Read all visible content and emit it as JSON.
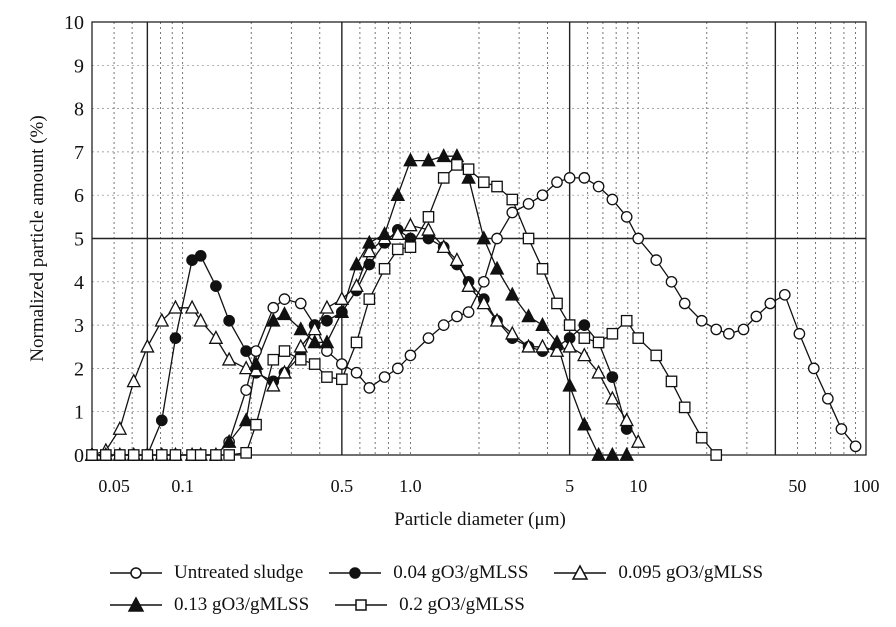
{
  "chart_data": {
    "type": "line",
    "x_scale": "log",
    "xlabel": "Particle diameter (μm)",
    "ylabel": "Normalized particle amount (%)",
    "xlim": [
      0.04,
      100
    ],
    "ylim": [
      0,
      10
    ],
    "x_ticks": [
      "0.05",
      "0.1",
      "0.5",
      "1.0",
      "5",
      "10",
      "50",
      "100"
    ],
    "y_ticks": [
      "0",
      "1",
      "2",
      "3",
      "4",
      "5",
      "6",
      "7",
      "8",
      "9",
      "10"
    ],
    "grid": "log-decade major and minor lines",
    "legend_position": "bottom",
    "series": [
      {
        "name": "Untreated sludge",
        "marker": "open-circle",
        "points": [
          [
            0.04,
            0
          ],
          [
            0.046,
            0
          ],
          [
            0.053,
            0
          ],
          [
            0.061,
            0
          ],
          [
            0.07,
            0
          ],
          [
            0.081,
            0
          ],
          [
            0.093,
            0
          ],
          [
            0.11,
            0
          ],
          [
            0.12,
            0
          ],
          [
            0.14,
            0
          ],
          [
            0.16,
            0.3
          ],
          [
            0.19,
            1.5
          ],
          [
            0.21,
            2.4
          ],
          [
            0.25,
            3.4
          ],
          [
            0.28,
            3.6
          ],
          [
            0.33,
            3.5
          ],
          [
            0.38,
            3.0
          ],
          [
            0.43,
            2.4
          ],
          [
            0.5,
            2.1
          ],
          [
            0.58,
            1.9
          ],
          [
            0.66,
            1.55
          ],
          [
            0.77,
            1.8
          ],
          [
            0.88,
            2.0
          ],
          [
            1.0,
            2.3
          ],
          [
            1.2,
            2.7
          ],
          [
            1.4,
            3.0
          ],
          [
            1.6,
            3.2
          ],
          [
            1.8,
            3.3
          ],
          [
            2.1,
            4.0
          ],
          [
            2.4,
            5.0
          ],
          [
            2.8,
            5.6
          ],
          [
            3.3,
            5.8
          ],
          [
            3.8,
            6.0
          ],
          [
            4.4,
            6.3
          ],
          [
            5.0,
            6.4
          ],
          [
            5.8,
            6.4
          ],
          [
            6.7,
            6.2
          ],
          [
            7.7,
            5.9
          ],
          [
            8.9,
            5.5
          ],
          [
            10,
            5.0
          ],
          [
            12,
            4.5
          ],
          [
            14,
            4.0
          ],
          [
            16,
            3.5
          ],
          [
            19,
            3.1
          ],
          [
            22,
            2.9
          ],
          [
            25,
            2.8
          ],
          [
            29,
            2.9
          ],
          [
            33,
            3.2
          ],
          [
            38,
            3.5
          ],
          [
            44,
            3.7
          ],
          [
            51,
            2.8
          ],
          [
            59,
            2.0
          ],
          [
            68,
            1.3
          ],
          [
            78,
            0.6
          ],
          [
            90,
            0.2
          ]
        ]
      },
      {
        "name": "0.04 gO3/gMLSS",
        "marker": "filled-circle",
        "points": [
          [
            0.04,
            0
          ],
          [
            0.046,
            0
          ],
          [
            0.053,
            0
          ],
          [
            0.061,
            0
          ],
          [
            0.07,
            0
          ],
          [
            0.081,
            0.8
          ],
          [
            0.093,
            2.7
          ],
          [
            0.11,
            4.5
          ],
          [
            0.12,
            4.6
          ],
          [
            0.14,
            3.9
          ],
          [
            0.16,
            3.1
          ],
          [
            0.19,
            2.4
          ],
          [
            0.21,
            1.9
          ],
          [
            0.25,
            1.7
          ],
          [
            0.28,
            1.9
          ],
          [
            0.33,
            2.3
          ],
          [
            0.38,
            3.0
          ],
          [
            0.43,
            3.1
          ],
          [
            0.5,
            3.3
          ],
          [
            0.58,
            3.8
          ],
          [
            0.66,
            4.4
          ],
          [
            0.77,
            4.9
          ],
          [
            0.88,
            5.2
          ],
          [
            1.0,
            5.0
          ],
          [
            1.2,
            5.0
          ],
          [
            1.4,
            4.8
          ],
          [
            1.6,
            4.4
          ],
          [
            1.8,
            4.0
          ],
          [
            2.1,
            3.6
          ],
          [
            2.4,
            3.1
          ],
          [
            2.8,
            2.7
          ],
          [
            3.3,
            2.5
          ],
          [
            3.8,
            2.4
          ],
          [
            4.4,
            2.5
          ],
          [
            5.0,
            2.7
          ],
          [
            5.8,
            3.0
          ],
          [
            6.7,
            2.6
          ],
          [
            7.7,
            1.8
          ],
          [
            8.9,
            0.6
          ]
        ]
      },
      {
        "name": "0.095 gO3/gMLSS",
        "marker": "open-triangle",
        "points": [
          [
            0.04,
            0
          ],
          [
            0.046,
            0.1
          ],
          [
            0.053,
            0.6
          ],
          [
            0.061,
            1.7
          ],
          [
            0.07,
            2.5
          ],
          [
            0.081,
            3.1
          ],
          [
            0.093,
            3.4
          ],
          [
            0.11,
            3.4
          ],
          [
            0.12,
            3.1
          ],
          [
            0.14,
            2.7
          ],
          [
            0.16,
            2.2
          ],
          [
            0.19,
            2.0
          ],
          [
            0.21,
            1.95
          ],
          [
            0.25,
            1.6
          ],
          [
            0.28,
            1.9
          ],
          [
            0.33,
            2.5
          ],
          [
            0.38,
            2.9
          ],
          [
            0.43,
            3.4
          ],
          [
            0.5,
            3.6
          ],
          [
            0.58,
            3.9
          ],
          [
            0.66,
            4.7
          ],
          [
            0.77,
            5.0
          ],
          [
            0.88,
            5.1
          ],
          [
            1.0,
            5.3
          ],
          [
            1.2,
            5.2
          ],
          [
            1.4,
            4.8
          ],
          [
            1.6,
            4.5
          ],
          [
            1.8,
            3.9
          ],
          [
            2.1,
            3.5
          ],
          [
            2.4,
            3.1
          ],
          [
            2.8,
            2.8
          ],
          [
            3.3,
            2.5
          ],
          [
            3.8,
            2.5
          ],
          [
            4.4,
            2.4
          ],
          [
            5.0,
            2.5
          ],
          [
            5.8,
            2.3
          ],
          [
            6.7,
            1.9
          ],
          [
            7.7,
            1.3
          ],
          [
            8.9,
            0.8
          ],
          [
            10,
            0.3
          ]
        ]
      },
      {
        "name": "0.13 gO3/gMLSS",
        "marker": "filled-triangle",
        "points": [
          [
            0.04,
            0
          ],
          [
            0.046,
            0
          ],
          [
            0.053,
            0
          ],
          [
            0.061,
            0
          ],
          [
            0.07,
            0
          ],
          [
            0.081,
            0
          ],
          [
            0.093,
            0
          ],
          [
            0.11,
            0
          ],
          [
            0.12,
            0
          ],
          [
            0.14,
            0
          ],
          [
            0.16,
            0.3
          ],
          [
            0.19,
            0.8
          ],
          [
            0.21,
            2.1
          ],
          [
            0.25,
            3.1
          ],
          [
            0.28,
            3.25
          ],
          [
            0.33,
            2.9
          ],
          [
            0.38,
            2.6
          ],
          [
            0.43,
            2.6
          ],
          [
            0.5,
            3.3
          ],
          [
            0.58,
            4.4
          ],
          [
            0.66,
            4.9
          ],
          [
            0.77,
            5.1
          ],
          [
            0.88,
            6.0
          ],
          [
            1.0,
            6.8
          ],
          [
            1.2,
            6.8
          ],
          [
            1.4,
            6.9
          ],
          [
            1.6,
            6.9
          ],
          [
            1.8,
            6.4
          ],
          [
            2.1,
            5.0
          ],
          [
            2.4,
            4.3
          ],
          [
            2.8,
            3.7
          ],
          [
            3.3,
            3.2
          ],
          [
            3.8,
            3.0
          ],
          [
            4.4,
            2.6
          ],
          [
            5.0,
            1.6
          ],
          [
            5.8,
            0.7
          ],
          [
            6.7,
            0
          ],
          [
            7.7,
            0
          ],
          [
            8.9,
            0
          ]
        ]
      },
      {
        "name": "0.2 gO3/gMLSS",
        "marker": "open-square",
        "points": [
          [
            0.04,
            0
          ],
          [
            0.046,
            0
          ],
          [
            0.053,
            0
          ],
          [
            0.061,
            0
          ],
          [
            0.07,
            0
          ],
          [
            0.081,
            0
          ],
          [
            0.093,
            0
          ],
          [
            0.11,
            0
          ],
          [
            0.12,
            0
          ],
          [
            0.14,
            0
          ],
          [
            0.16,
            0
          ],
          [
            0.19,
            0.05
          ],
          [
            0.21,
            0.7
          ],
          [
            0.25,
            2.2
          ],
          [
            0.28,
            2.4
          ],
          [
            0.33,
            2.2
          ],
          [
            0.38,
            2.1
          ],
          [
            0.43,
            1.8
          ],
          [
            0.5,
            1.75
          ],
          [
            0.58,
            2.6
          ],
          [
            0.66,
            3.6
          ],
          [
            0.77,
            4.3
          ],
          [
            0.88,
            4.75
          ],
          [
            1.0,
            4.8
          ],
          [
            1.2,
            5.5
          ],
          [
            1.4,
            6.4
          ],
          [
            1.6,
            6.7
          ],
          [
            1.8,
            6.6
          ],
          [
            2.1,
            6.3
          ],
          [
            2.4,
            6.2
          ],
          [
            2.8,
            5.9
          ],
          [
            3.3,
            5.0
          ],
          [
            3.8,
            4.3
          ],
          [
            4.4,
            3.5
          ],
          [
            5.0,
            3.0
          ],
          [
            5.8,
            2.7
          ],
          [
            6.7,
            2.6
          ],
          [
            7.7,
            2.8
          ],
          [
            8.9,
            3.1
          ],
          [
            10,
            2.7
          ],
          [
            12,
            2.3
          ],
          [
            14,
            1.7
          ],
          [
            16,
            1.1
          ],
          [
            19,
            0.4
          ],
          [
            22,
            0
          ]
        ]
      }
    ]
  },
  "legend": {
    "items": [
      {
        "label": "Untreated sludge",
        "marker": "open-circle"
      },
      {
        "label": "0.04 gO3/gMLSS",
        "marker": "filled-circle"
      },
      {
        "label": "0.095 gO3/gMLSS",
        "marker": "open-triangle"
      },
      {
        "label": "0.13 gO3/gMLSS",
        "marker": "filled-triangle"
      },
      {
        "label": "0.2 gO3/gMLSS",
        "marker": "open-square"
      }
    ]
  }
}
